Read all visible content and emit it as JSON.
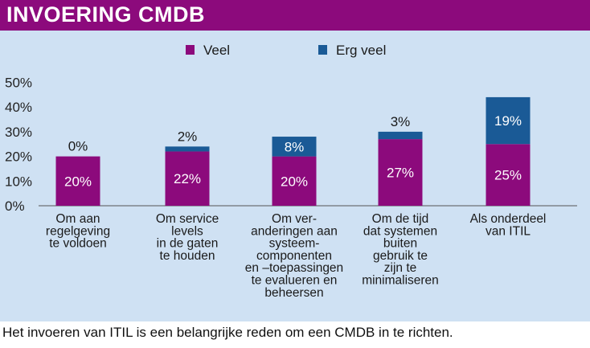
{
  "header": {
    "title": "INVOERING CMDB"
  },
  "caption": "Het invoeren van ITIL is een belangrijke reden om een CMDB in te richten.",
  "colors": {
    "title_bar": "#8c0a7c",
    "panel": "#cfe1f3",
    "veel": "#8c0a7c",
    "erg_veel": "#1a5a96"
  },
  "chart_data": {
    "type": "bar",
    "stacked": true,
    "categories": [
      "Om aan\nregelgeving\nte voldoen",
      "Om service\nlevels\nin de gaten\nte houden",
      "Om ver-\nanderingen aan\nsysteem-\ncomponenten\nen –toepassingen\nte evalueren en\nbeheersen",
      "Om de tijd\ndat systemen\nbuiten\ngebruik te\nzijn te\nminimaliseren",
      "Als onderdeel\nvan ITIL"
    ],
    "series": [
      {
        "name": "Veel",
        "values": [
          20,
          22,
          20,
          27,
          25
        ],
        "labels": [
          "20%",
          "22%",
          "20%",
          "27%",
          "25%"
        ],
        "color": "#8c0a7c"
      },
      {
        "name": "Erg veel",
        "values": [
          0,
          2,
          8,
          3,
          19
        ],
        "labels": [
          "0%",
          "2%",
          "8%",
          "3%",
          "19%"
        ],
        "color": "#1a5a96"
      }
    ],
    "yticks": [
      "0%",
      "10%",
      "20%",
      "30%",
      "40%",
      "50%"
    ],
    "ylim": [
      0,
      50
    ],
    "legend": "top-center",
    "grid": false
  }
}
